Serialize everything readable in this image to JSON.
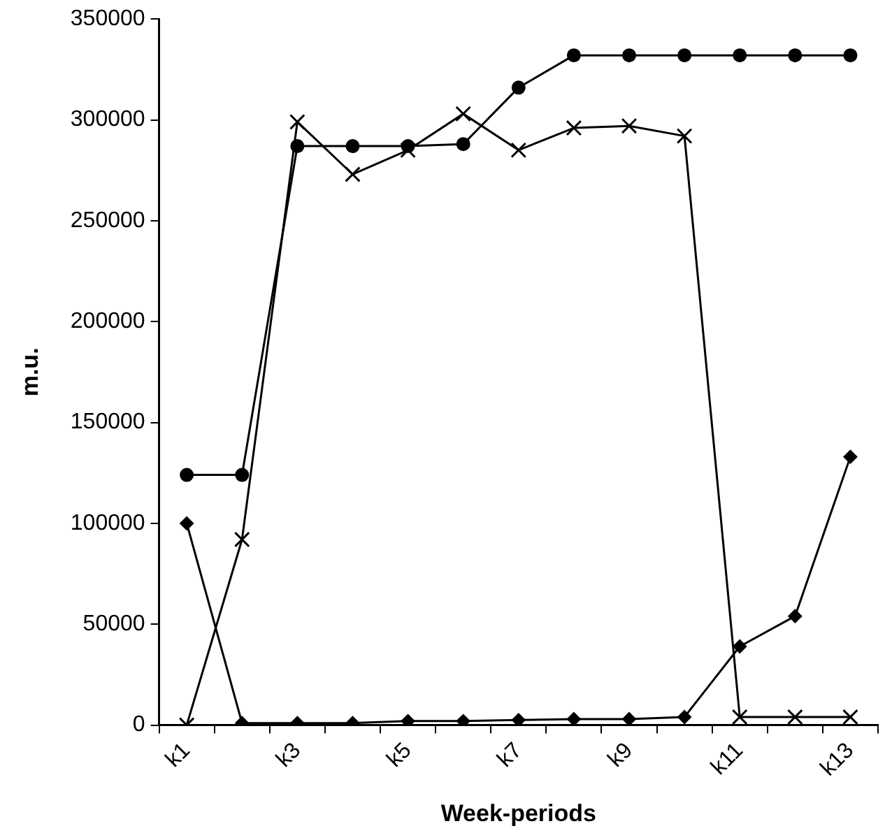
{
  "chart_data": {
    "type": "line",
    "xlabel": "Week-periods",
    "ylabel": "m.u.",
    "categories": [
      "k1",
      null,
      "k3",
      null,
      "k5",
      null,
      "k7",
      null,
      "k9",
      null,
      "k11",
      null,
      "k13"
    ],
    "series": [
      {
        "color": "#000000",
        "marker": "circle",
        "values": [
          124000,
          124000,
          287000,
          287000,
          287000,
          288000,
          316000,
          332000,
          332000,
          332000,
          332000,
          332000,
          332000
        ]
      },
      {
        "color": "#000000",
        "marker": "cross",
        "values": [
          0,
          92000,
          299000,
          273000,
          285000,
          303000,
          285000,
          296000,
          297000,
          292000,
          4000,
          4000,
          4000
        ]
      },
      {
        "color": "#000000",
        "marker": "diamond",
        "values": [
          100000,
          1000,
          1000,
          1000,
          2000,
          2000,
          2500,
          3000,
          3000,
          4000,
          39000,
          54000,
          133000
        ]
      }
    ],
    "ylim": [
      0,
      350000
    ],
    "yticks": [
      0,
      50000,
      100000,
      150000,
      200000,
      250000,
      300000,
      350000
    ],
    "grid": false,
    "legend": false,
    "line_style": "solid"
  }
}
